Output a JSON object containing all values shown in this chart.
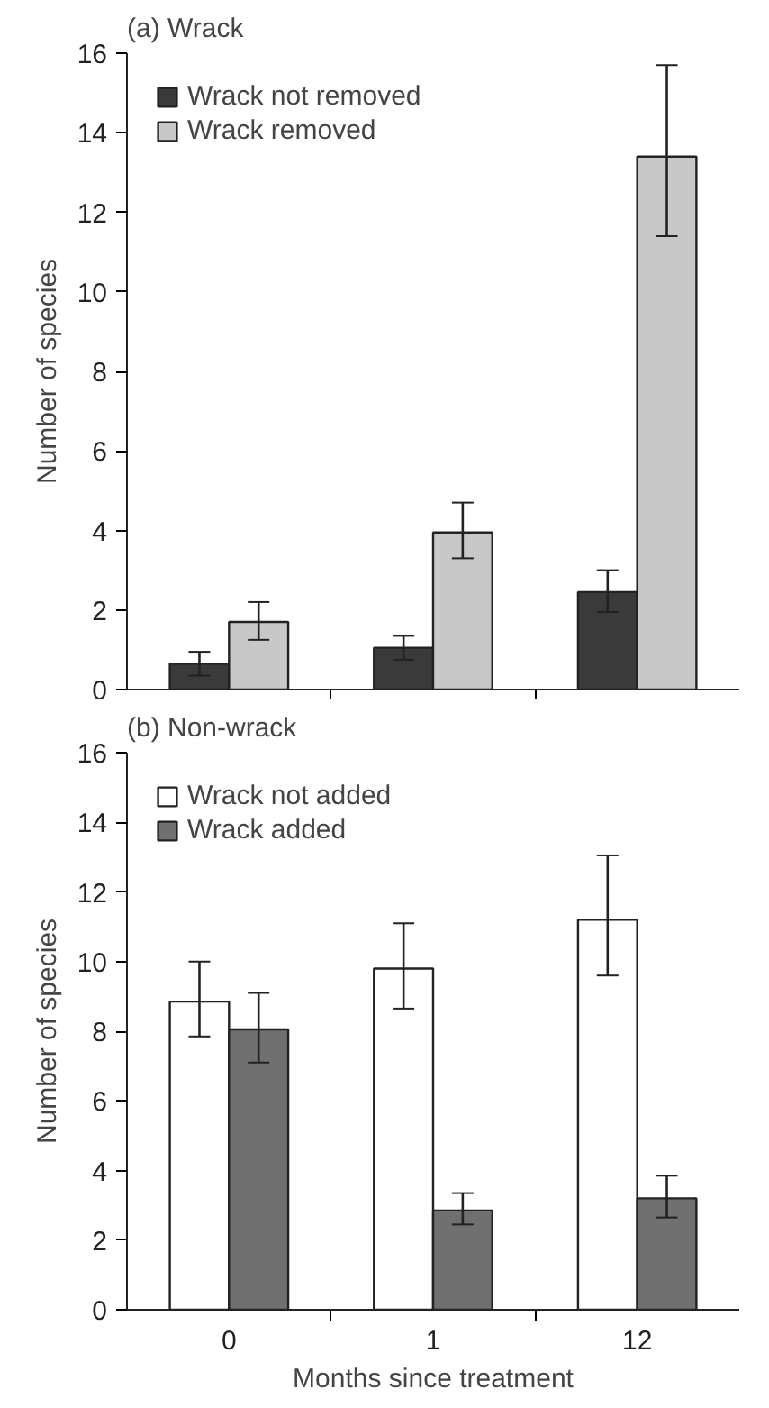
{
  "chart_data": [
    {
      "type": "bar",
      "title": "(a) Wrack",
      "ylabel": "Number of species",
      "categories": [
        "0",
        "1",
        "12"
      ],
      "ylim": [
        0,
        16
      ],
      "yticks": [
        0,
        2,
        4,
        6,
        8,
        10,
        12,
        14,
        16
      ],
      "tick_labels": "y",
      "legend": "top left",
      "grid": false,
      "series": [
        {
          "name": "Wrack not removed",
          "color": "#3a3a3a",
          "values": [
            0.65,
            1.05,
            2.45
          ],
          "errors": [
            [
              0.35,
              0.95
            ],
            [
              0.75,
              1.35
            ],
            [
              1.95,
              3.0
            ]
          ]
        },
        {
          "name": "Wrack removed",
          "color": "#c8c8c8",
          "values": [
            1.7,
            3.95,
            13.4
          ],
          "errors": [
            [
              1.25,
              2.2
            ],
            [
              3.3,
              4.7
            ],
            [
              11.4,
              15.7
            ]
          ]
        }
      ]
    },
    {
      "type": "bar",
      "title": "(b) Non-wrack",
      "ylabel": "Number of species",
      "xlabel": "Months since treatment",
      "categories": [
        "0",
        "1",
        "12"
      ],
      "ylim": [
        0,
        16
      ],
      "yticks": [
        0,
        2,
        4,
        6,
        8,
        10,
        12,
        14,
        16
      ],
      "legend": "top left",
      "grid": false,
      "series": [
        {
          "name": "Wrack not added",
          "color": "#ffffff",
          "values": [
            8.85,
            9.8,
            11.2
          ],
          "errors": [
            [
              7.85,
              10.0
            ],
            [
              8.65,
              11.1
            ],
            [
              9.6,
              13.05
            ]
          ]
        },
        {
          "name": "Wrack added",
          "color": "#707070",
          "values": [
            8.05,
            2.85,
            3.2
          ],
          "errors": [
            [
              7.1,
              9.1
            ],
            [
              2.45,
              3.35
            ],
            [
              2.65,
              3.85
            ]
          ]
        }
      ]
    }
  ]
}
